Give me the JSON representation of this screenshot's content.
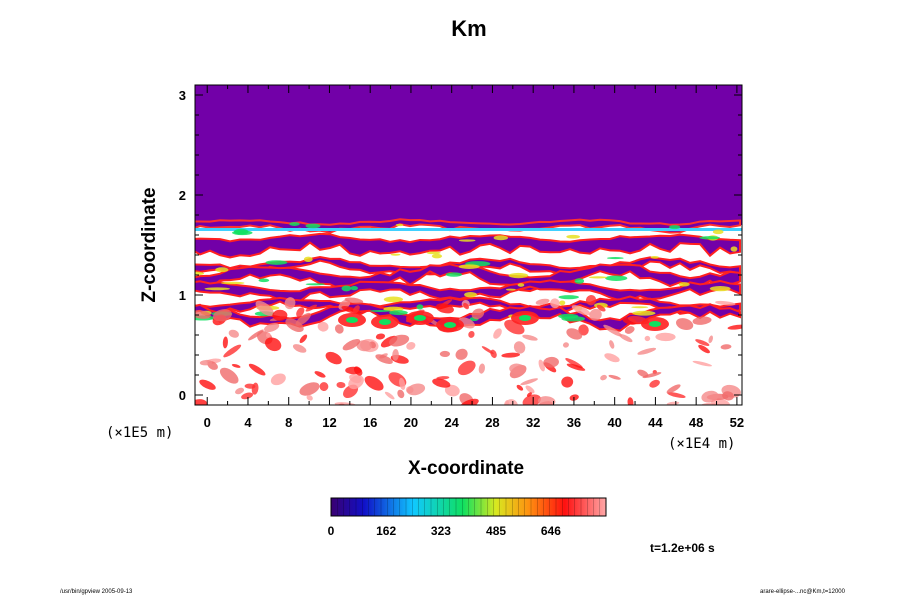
{
  "chart_data": {
    "type": "heatmap",
    "title": "Km",
    "xlabel": "X-coordinate",
    "ylabel": "Z-coordinate",
    "x_scale_label": "(×1E4 m)",
    "y_scale_label": "(×1E5 m)",
    "xlim": [
      -1.2,
      52.5
    ],
    "ylim": [
      -0.1,
      3.1
    ],
    "x_ticks": [
      0,
      4,
      8,
      12,
      16,
      20,
      24,
      28,
      32,
      36,
      40,
      44,
      48,
      52
    ],
    "y_ticks": [
      0,
      1,
      2,
      3
    ],
    "colorbar_ticks": [
      0,
      162,
      323,
      485,
      646
    ],
    "time_label": "t=1.2e+06 s",
    "colors": {
      "background_field": "#7200a8",
      "low": "#ffffff",
      "mid_low": "#f06a6a",
      "mid": "#ff1010",
      "high": "#00e060"
    }
  },
  "footer": {
    "left": "/usr/bin/gpview 2005-09-13",
    "right": "arare-ellipse-...nc@Km,t=12000"
  }
}
